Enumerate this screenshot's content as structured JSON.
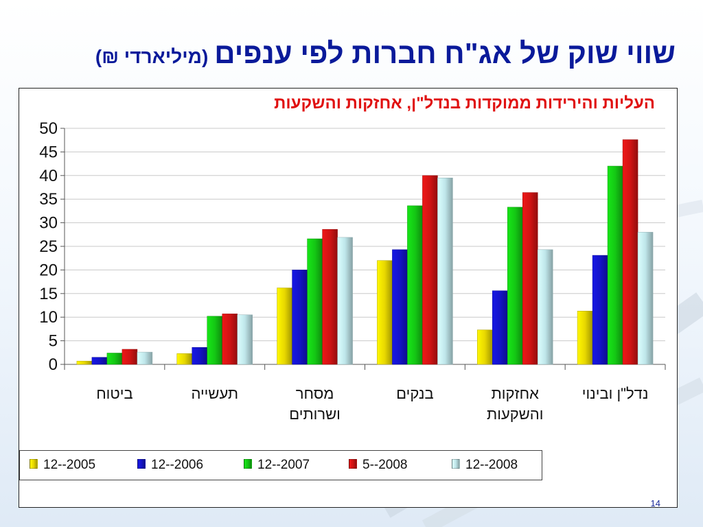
{
  "slide": {
    "title": "שווי שוק של אג\"ח חברות לפי ענפים",
    "title_unit": "(מיליארדי ₪)",
    "page_number": "14"
  },
  "chart_data": {
    "type": "bar",
    "subtitle": "העליות והירידות ממוקדות בנדל\"ן, אחזקות והשקעות",
    "categories": [
      "ביטוח",
      "תעשייה",
      "מסחר ושרותים",
      "בנקים",
      "אחזקות והשקעות",
      "נדל\"ן ובינוי"
    ],
    "category_lines": [
      [
        "ביטוח"
      ],
      [
        "תעשייה"
      ],
      [
        "מסחר",
        "ושרותים"
      ],
      [
        "בנקים"
      ],
      [
        "אחזקות",
        "והשקעות"
      ],
      [
        "נדל\"ן ובינוי"
      ]
    ],
    "series": [
      {
        "name": "12--2005",
        "color": "#e8d800",
        "values": [
          0.7,
          2.3,
          16.2,
          22.0,
          7.3,
          11.3
        ]
      },
      {
        "name": "12--2006",
        "color": "#1414c8",
        "values": [
          1.5,
          3.6,
          20.0,
          24.3,
          15.6,
          23.1
        ]
      },
      {
        "name": "12--2007",
        "color": "#14c814",
        "values": [
          2.4,
          10.2,
          26.6,
          33.6,
          33.3,
          42.0
        ]
      },
      {
        "name": "5--2008",
        "color": "#d01414",
        "values": [
          3.2,
          10.7,
          28.6,
          40.0,
          36.4,
          47.6
        ]
      },
      {
        "name": "12--2008",
        "color": "#bfe6ea",
        "values": [
          2.6,
          10.5,
          26.9,
          39.5,
          24.3,
          28.0
        ]
      }
    ],
    "yticks": [
      "0",
      "5",
      "10",
      "15",
      "20",
      "25",
      "30",
      "35",
      "40",
      "45",
      "50"
    ],
    "ylim": [
      0,
      50
    ],
    "grid": true,
    "legend_position": "bottom"
  }
}
